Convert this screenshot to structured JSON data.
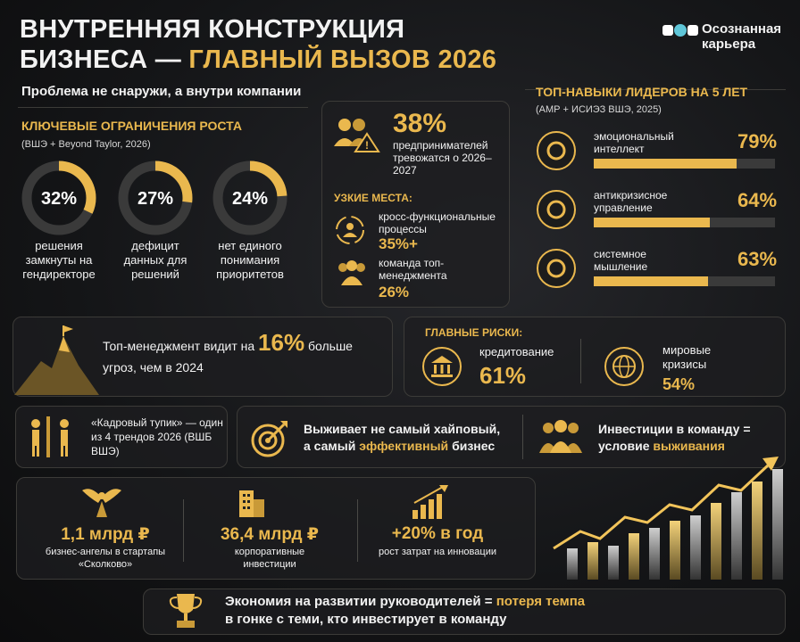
{
  "header": {
    "title_line1": "ВНУТРЕННЯЯ КОНСТРУКЦИЯ",
    "title_line2a": "БИЗНЕСА —",
    "title_line2b": "ГЛАВНЫЙ ВЫЗОВ 2026",
    "subtitle": "Проблема не снаружи, а внутри компании",
    "logo": "Осознанная карьера"
  },
  "growth_limits": {
    "title": "КЛЮЧЕВЫЕ ОГРАНИЧЕНИЯ РОСТА",
    "source": "(ВШЭ + Beyond Taylor, 2026)",
    "items": [
      {
        "value": 32,
        "label": "32%",
        "text": "решения замкнуты на гендиректоре"
      },
      {
        "value": 27,
        "label": "27%",
        "text": "дефицит данных для решений"
      },
      {
        "value": 24,
        "label": "24%",
        "text": "нет единого понимания приоритетов"
      }
    ]
  },
  "anxiety": {
    "value": "38%",
    "text": "предпринимателей тревожатся о 2026–2027"
  },
  "bottlenecks": {
    "title": "УЗКИЕ МЕСТА:",
    "items": [
      {
        "text": "кросс-функциональные процессы",
        "value": "35%+"
      },
      {
        "text": "команда топ-менеджмента",
        "value": "26%"
      }
    ]
  },
  "skills": {
    "title": "ТОП-НАВЫКИ ЛИДЕРОВ НА 5 ЛЕТ",
    "source": "(АМР + ИСИЭЗ ВШЭ, 2025)",
    "items": [
      {
        "name": "эмоциональный интеллект",
        "value": 79,
        "label": "79%"
      },
      {
        "name": "антикризисное управление",
        "value": 64,
        "label": "64%"
      },
      {
        "name": "системное мышление",
        "value": 63,
        "label": "63%"
      }
    ]
  },
  "threats": {
    "before": "Топ-менеджмент видит на",
    "value": "16%",
    "after": "больше угроз, чем в 2024"
  },
  "risks": {
    "title": "ГЛАВНЫЕ РИСКИ:",
    "items": [
      {
        "name": "кредитование",
        "value": "61%"
      },
      {
        "name": "мировые кризисы",
        "value": "54%"
      }
    ]
  },
  "hr": {
    "text": "«Кадровый тупик» — один из 4 трендов 2026 (ВШБ ВШЭ)"
  },
  "survives": {
    "before": "Выживает не самый хайповый, а самый",
    "highlight": "эффективный",
    "after": "бизнес"
  },
  "invest": {
    "before": "Инвестиции в команду = условие",
    "highlight": "выживания"
  },
  "money": [
    {
      "value": "1,1 млрд ₽",
      "text": "бизнес-ангелы в стартапы «Сколково»"
    },
    {
      "value": "36,4 млрд ₽",
      "text": "корпоративные инвестиции"
    },
    {
      "value": "+20% в год",
      "text": "рост затрат на инновации"
    }
  ],
  "footer": {
    "before": "Экономия на развитии руководителей =",
    "highlight": "потеря темпа",
    "after": "в гонке с теми, кто инвестирует в команду"
  }
}
